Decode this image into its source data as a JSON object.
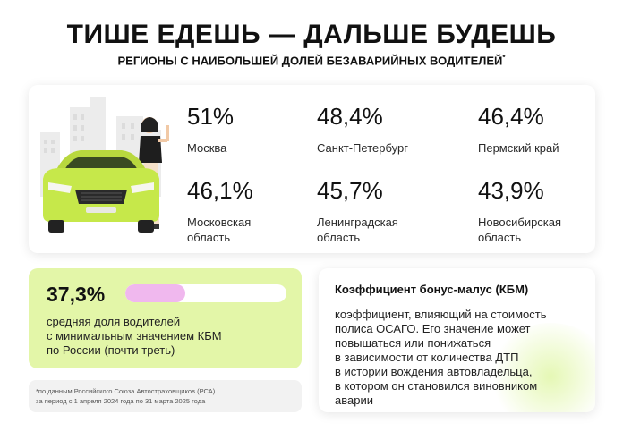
{
  "header": {
    "title": "ТИШЕ ЕДЕШЬ — ДАЛЬШЕ БУДЕШЬ",
    "subtitle": "РЕГИОНЫ С НАИБОЛЬШЕЙ ДОЛЕЙ БЕЗАВАРИЙНЫХ ВОДИТЕЛЕЙ",
    "subtitle_mark": "*"
  },
  "regions": [
    {
      "percent": "51%",
      "name_line1": "Москва",
      "name_line2": ""
    },
    {
      "percent": "48,4%",
      "name_line1": "Санкт-Петербург",
      "name_line2": ""
    },
    {
      "percent": "46,4%",
      "name_line1": "Пермский край",
      "name_line2": ""
    },
    {
      "percent": "46,1%",
      "name_line1": "Московская",
      "name_line2": "область"
    },
    {
      "percent": "45,7%",
      "name_line1": "Ленинградская",
      "name_line2": "область"
    },
    {
      "percent": "43,9%",
      "name_line1": "Новосибирская",
      "name_line2": "область"
    }
  ],
  "kbm_stat": {
    "percent": "37,3%",
    "fill_fraction": 0.373,
    "desc_line1": "средняя доля водителей",
    "desc_line2": "с минимальным значением КБМ",
    "desc_line3": "по России (почти треть)"
  },
  "footnote": {
    "line1": "*по данным Российского Союза Автостраховщиков (РСА)",
    "line2": "за период с 1 апреля 2024 года по 31 марта 2025 года"
  },
  "definition": {
    "title": "Коэффициент бонус-малус (КБМ)",
    "lines": [
      "коэффициент, влияющий на стоимость",
      "полиса ОСАГО. Его значение может",
      "повышаться или понижаться",
      "в зависимости от количества ДТП",
      "в истории вождения автовладельца,",
      "в котором он становился виновником",
      "аварии"
    ]
  },
  "colors": {
    "accent_green": "#e3f6a8",
    "car_green": "#c6e84a",
    "progress_pink": "#f0b8ee"
  },
  "illustration": {
    "icon": "car-with-woman-illustration"
  }
}
